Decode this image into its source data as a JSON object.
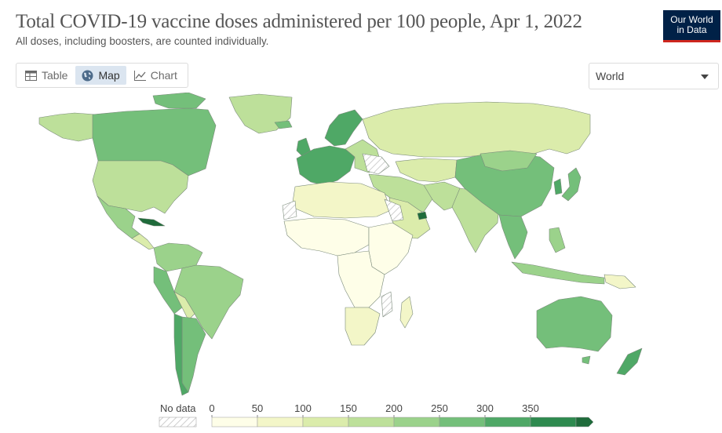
{
  "title": "Total COVID-19 vaccine doses administered per 100 people, Apr 1, 2022",
  "subtitle": "All doses, including boosters, are counted individually.",
  "logo": {
    "line1": "Our World",
    "line2": "in Data"
  },
  "tabs": [
    {
      "label": "Table",
      "icon": "table-icon",
      "active": false
    },
    {
      "label": "Map",
      "icon": "globe-icon",
      "active": true
    },
    {
      "label": "Chart",
      "icon": "line-chart-icon",
      "active": false
    }
  ],
  "region_select": {
    "value": "World"
  },
  "legend": {
    "no_data_label": "No data",
    "ticks": [
      "0",
      "50",
      "100",
      "150",
      "200",
      "250",
      "300",
      "350"
    ],
    "colors": [
      "#fefee8",
      "#f3f6c8",
      "#dbecab",
      "#bde09a",
      "#9bd28b",
      "#74bf7a",
      "#4fa866",
      "#2e8a4f",
      "#1f6b3b"
    ]
  }
}
